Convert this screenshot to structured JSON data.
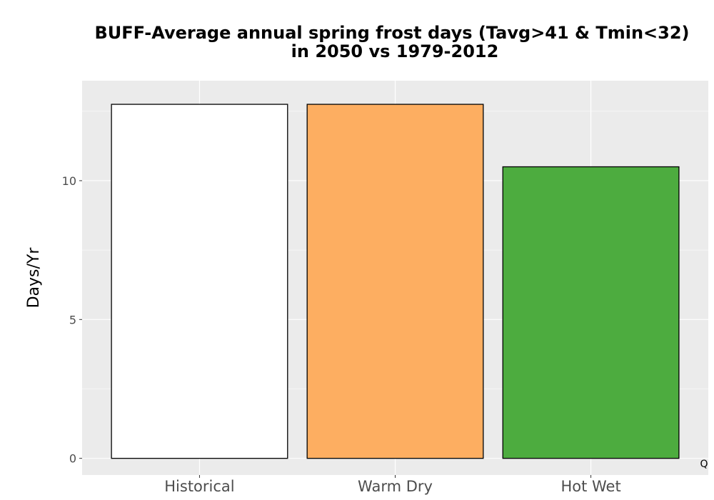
{
  "chart_data": {
    "type": "bar",
    "title_line1": "BUFF-Average annual spring frost days (Tavg>41 & Tmin<32)",
    "title_line2": "in 2050 vs 1979-2012",
    "xlabel": "",
    "ylabel": "Days/Yr",
    "categories": [
      "Historical",
      "Warm Dry",
      "Hot Wet"
    ],
    "values": [
      12.75,
      12.75,
      10.5
    ],
    "colors": [
      "#ffffff",
      "#fdae61",
      "#4dac3f"
    ],
    "ylim": [
      -0.6,
      13.6
    ],
    "yticks": [
      0,
      5,
      10
    ],
    "ytick_labels": [
      "0",
      "5",
      "10"
    ],
    "grid": true,
    "legend": "none",
    "panel_background": "#ebebeb",
    "grid_color": "#ffffff",
    "bar_outline": "#000000",
    "corner_label": "Q"
  }
}
